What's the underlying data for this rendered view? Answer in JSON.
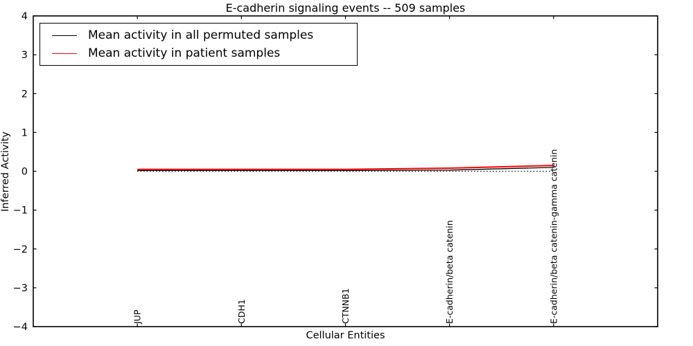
{
  "title": "E-cadherin signaling events -- 509 samples",
  "xlabel": "Cellular Entities",
  "ylabel": "Inferred Activity",
  "legend": [
    {
      "label": "Mean activity in all permuted samples",
      "color": "#000000"
    },
    {
      "label": "Mean activity in patient samples",
      "color": "#ff0000"
    }
  ],
  "chart_data": {
    "type": "line",
    "title": "E-cadherin signaling events -- 509 samples",
    "xlabel": "Cellular Entities",
    "ylabel": "Inferred Activity",
    "categories": [
      "JUP",
      "CDH1",
      "CTNNB1",
      "E-cadherin/beta catenin",
      "E-cadherin/beta catenin-gamma catenin"
    ],
    "series": [
      {
        "name": "Mean activity in all permuted samples",
        "color": "#000000",
        "line_style": "solid",
        "line_width": 1.3,
        "values": [
          0.02,
          0.02,
          0.02,
          0.03,
          0.1
        ]
      },
      {
        "name": "Mean activity in patient samples",
        "color": "#ff0000",
        "line_style": "solid",
        "line_width": 2.0,
        "values": [
          0.05,
          0.05,
          0.05,
          0.08,
          0.15
        ]
      }
    ],
    "zero_line": {
      "y": 0,
      "color": "#000000",
      "line_style": "dotted"
    },
    "ylim": [
      -4,
      4
    ],
    "yticks": [
      4,
      3,
      2,
      1,
      0,
      -1,
      -2,
      -3,
      -4
    ],
    "ytick_labels": [
      "4",
      "3",
      "2",
      "1",
      "0",
      "−1",
      "−2",
      "−3",
      "−4"
    ],
    "grid": false,
    "legend_position": "upper left",
    "xtick_label_rotation": 90
  }
}
